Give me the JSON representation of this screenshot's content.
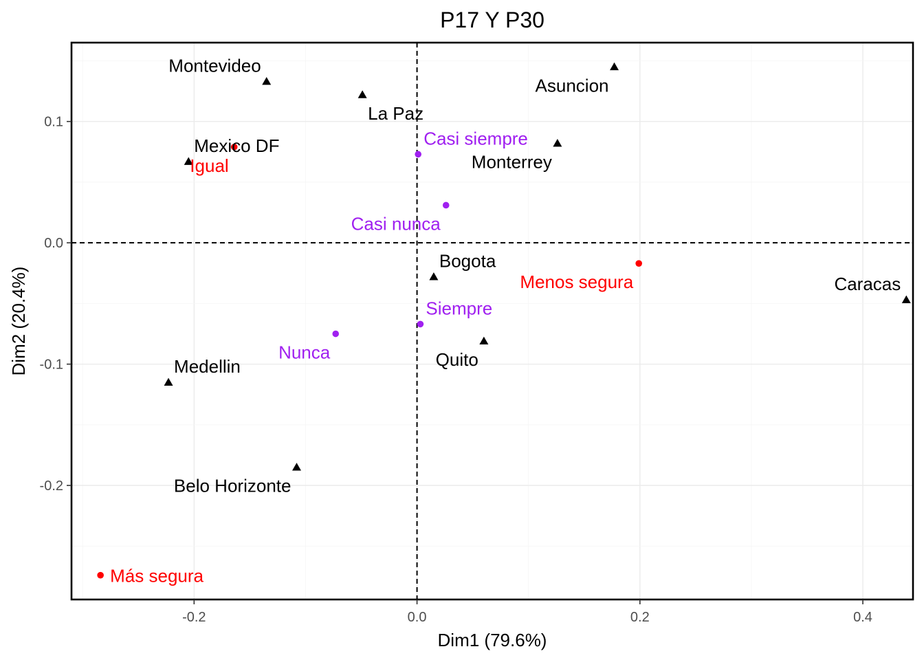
{
  "chart_data": {
    "type": "scatter",
    "title": "P17 Y P30",
    "xlabel": "Dim1 (79.6%)",
    "ylabel": "Dim2 (20.4%)",
    "xlim": [
      -0.31,
      0.445
    ],
    "ylim": [
      -0.294,
      0.165
    ],
    "x_ticks": [
      -0.2,
      0.0,
      0.2,
      0.4
    ],
    "x_tick_labels": [
      "-0.2",
      "0.0",
      "0.2",
      "0.4"
    ],
    "y_ticks": [
      -0.2,
      -0.1,
      0.0,
      0.1
    ],
    "y_tick_labels": [
      "-0.2",
      "-0.1",
      "0.0",
      "0.1"
    ],
    "grid": true,
    "reference_lines": {
      "x": 0.0,
      "y": 0.0,
      "style": "dashed"
    },
    "groups": [
      {
        "key": "cities",
        "marker": "triangle",
        "color": "#000000",
        "points": [
          {
            "label": "Montevideo",
            "x": -0.135,
            "y": 0.133,
            "label_pos": "above-left"
          },
          {
            "label": "La Paz",
            "x": -0.049,
            "y": 0.122,
            "label_pos": "below-right"
          },
          {
            "label": "Asuncion",
            "x": 0.177,
            "y": 0.145,
            "label_pos": "below-left"
          },
          {
            "label": "Mexico DF",
            "x": -0.205,
            "y": 0.067,
            "label_pos": "above-right"
          },
          {
            "label": "Monterrey",
            "x": 0.126,
            "y": 0.082,
            "label_pos": "below-left"
          },
          {
            "label": "Bogota",
            "x": 0.015,
            "y": -0.028,
            "label_pos": "above-right"
          },
          {
            "label": "Caracas",
            "x": 0.439,
            "y": -0.047,
            "label_pos": "above-left"
          },
          {
            "label": "Quito",
            "x": 0.06,
            "y": -0.081,
            "label_pos": "below-left"
          },
          {
            "label": "Medellin",
            "x": -0.223,
            "y": -0.115,
            "label_pos": "above-right"
          },
          {
            "label": "Belo Horizonte",
            "x": -0.108,
            "y": -0.185,
            "label_pos": "below-left"
          }
        ]
      },
      {
        "key": "p17",
        "marker": "circle",
        "color": "#ff0000",
        "points": [
          {
            "label": "Igual",
            "x": -0.164,
            "y": 0.079,
            "label_pos": "below-left"
          },
          {
            "label": "Menos segura",
            "x": 0.199,
            "y": -0.017,
            "label_pos": "below-left"
          },
          {
            "label": "Más segura",
            "x": -0.284,
            "y": -0.274,
            "label_pos": "right"
          }
        ]
      },
      {
        "key": "p30",
        "marker": "circle",
        "color": "#a020f0",
        "points": [
          {
            "label": "Casi siempre",
            "x": 0.001,
            "y": 0.073,
            "label_pos": "above-right"
          },
          {
            "label": "Casi nunca",
            "x": 0.026,
            "y": 0.031,
            "label_pos": "below-left"
          },
          {
            "label": "Siempre",
            "x": 0.003,
            "y": -0.067,
            "label_pos": "above-right"
          },
          {
            "label": "Nunca",
            "x": -0.073,
            "y": -0.075,
            "label_pos": "below-left"
          }
        ]
      }
    ]
  }
}
